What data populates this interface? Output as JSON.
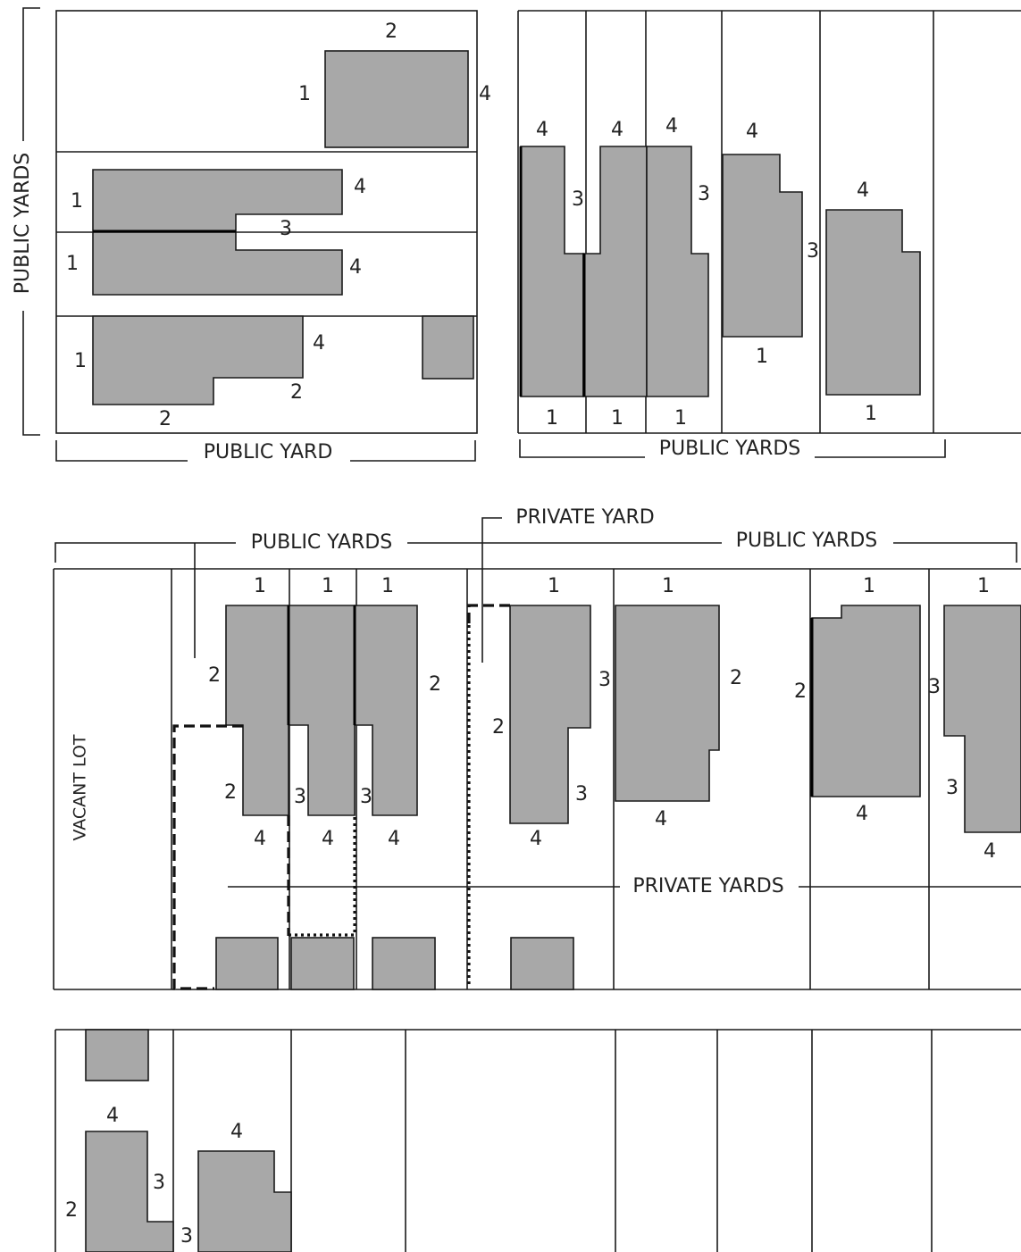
{
  "labels": {
    "public_yards_left": "PUBLIC YARDS",
    "public_yard_top_left": "PUBLIC YARD",
    "public_yards_top_right": "PUBLIC YARDS",
    "private_yard": "PRIVATE YARD",
    "public_yards_mid_left": "PUBLIC YARDS",
    "public_yards_mid_right": "PUBLIC YARDS",
    "private_yards": "PRIVATE YARDS",
    "vacant_lot": "VACANT LOT"
  },
  "side_numbers": {
    "one": "1",
    "two": "2",
    "three": "3",
    "four": "4"
  }
}
